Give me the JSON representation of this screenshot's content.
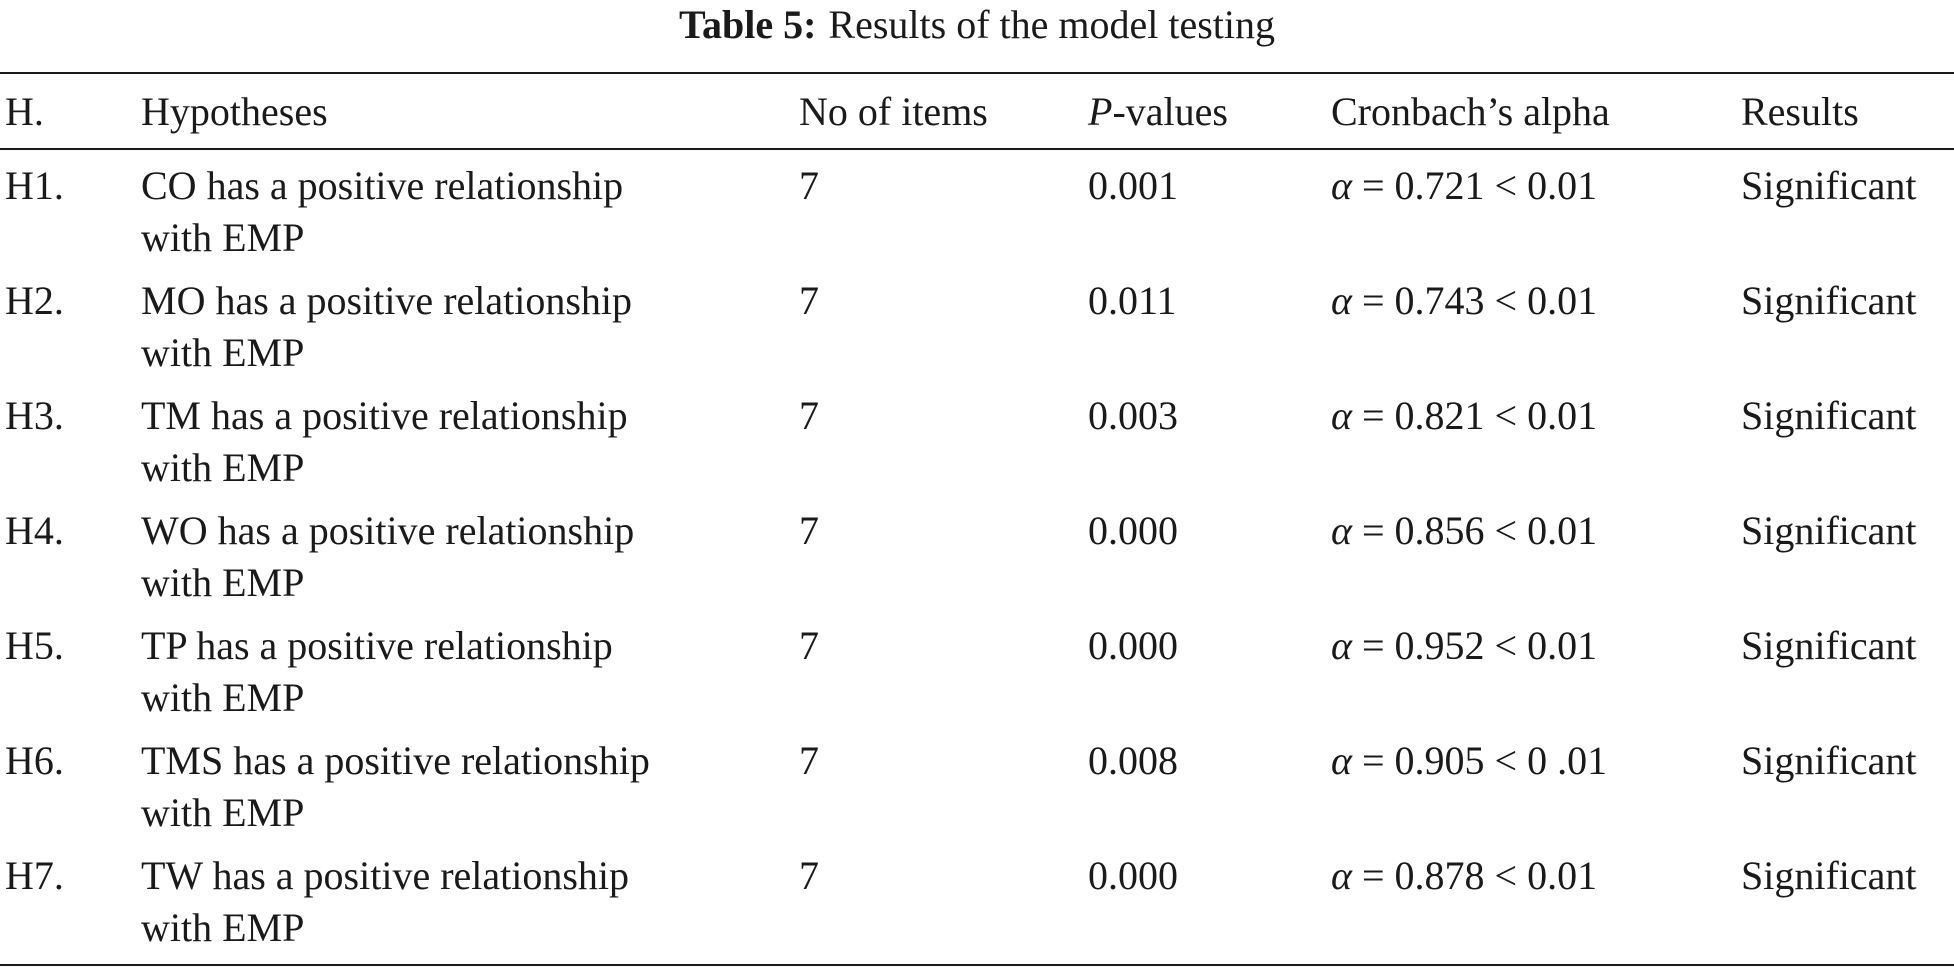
{
  "caption": {
    "label": "Table 5:",
    "text": "Results of the model testing"
  },
  "table": {
    "headers": {
      "h": "H.",
      "hypotheses": "Hypotheses",
      "items": "No of items",
      "p_italic": "P",
      "p_rest": "-values",
      "alpha": "Cronbach’s alpha",
      "results": "Results"
    },
    "rows": [
      {
        "h": "H1.",
        "hyp_line1": "CO has a positive relationship",
        "hyp_line2": "with EMP",
        "items": "7",
        "p": "0.001",
        "alpha_sym": "α",
        "alpha_rest": " = 0.721 < 0.01",
        "result": "Significant"
      },
      {
        "h": "H2.",
        "hyp_line1": "MO has a positive relationship",
        "hyp_line2": "with EMP",
        "items": "7",
        "p": "0.011",
        "alpha_sym": "α",
        "alpha_rest": " = 0.743 < 0.01",
        "result": "Significant"
      },
      {
        "h": "H3.",
        "hyp_line1": "TM has a positive relationship",
        "hyp_line2": "with EMP",
        "items": "7",
        "p": "0.003",
        "alpha_sym": "α",
        "alpha_rest": " = 0.821 < 0.01",
        "result": "Significant"
      },
      {
        "h": "H4.",
        "hyp_line1": "WO has a positive relationship",
        "hyp_line2": "with EMP",
        "items": "7",
        "p": "0.000",
        "alpha_sym": "α",
        "alpha_rest": " = 0.856 < 0.01",
        "result": "Significant"
      },
      {
        "h": "H5.",
        "hyp_line1": "TP has a positive relationship",
        "hyp_line2": "with EMP",
        "items": "7",
        "p": "0.000",
        "alpha_sym": "α",
        "alpha_rest": " = 0.952 < 0.01",
        "result": "Significant"
      },
      {
        "h": "H6.",
        "hyp_line1": "TMS has a positive relationship",
        "hyp_line2": "with EMP",
        "items": "7",
        "p": "0.008",
        "alpha_sym": "α",
        "alpha_rest": " = 0.905 < 0 .01",
        "result": "Significant"
      },
      {
        "h": "H7.",
        "hyp_line1": "TW has a positive relationship",
        "hyp_line2": "with EMP",
        "items": "7",
        "p": "0.000",
        "alpha_sym": "α",
        "alpha_rest": " = 0.878 < 0.01",
        "result": "Significant"
      }
    ]
  }
}
